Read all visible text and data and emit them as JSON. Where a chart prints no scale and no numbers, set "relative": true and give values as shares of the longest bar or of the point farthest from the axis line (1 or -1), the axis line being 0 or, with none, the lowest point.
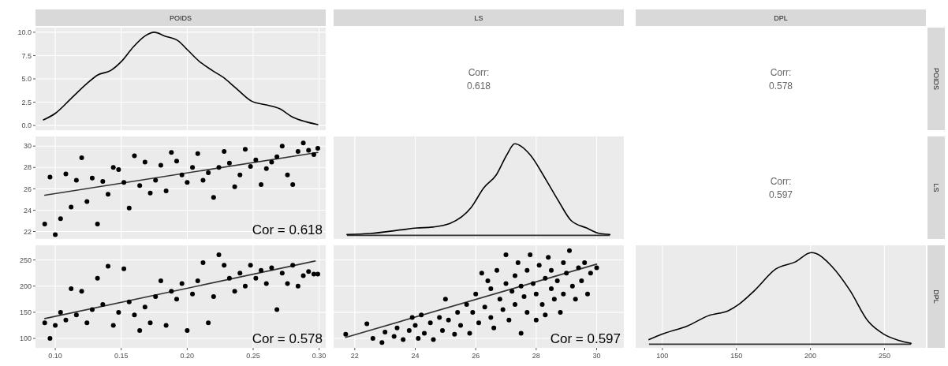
{
  "chart_data": [
    {
      "type": "line",
      "title": "POIDS",
      "xlim": [
        0.085,
        0.305
      ],
      "xticks": [
        0.1,
        0.15,
        0.2,
        0.25,
        0.3
      ],
      "ylim": [
        -0.5,
        10.5
      ],
      "yticks": [
        {
          "value": 0,
          "label": "0.0"
        },
        {
          "value": 2.5,
          "label": "2.5"
        },
        {
          "value": 5,
          "label": "5.0"
        },
        {
          "value": 7.5,
          "label": "7.5"
        },
        {
          "value": 10,
          "label": "10.0"
        }
      ],
      "tick_labels": "y",
      "grid": true,
      "marker": "none",
      "series": [
        {
          "color": "#000000",
          "x": [
            0.091,
            0.1,
            0.112,
            0.124,
            0.132,
            0.142,
            0.151,
            0.159,
            0.168,
            0.175,
            0.183,
            0.193,
            0.201,
            0.209,
            0.219,
            0.227,
            0.237,
            0.249,
            0.26,
            0.27,
            0.28,
            0.29,
            0.299
          ],
          "values": [
            0.6,
            1.3,
            2.9,
            4.5,
            5.4,
            5.9,
            7.0,
            8.4,
            9.6,
            10.0,
            9.6,
            9.1,
            8.0,
            6.9,
            5.9,
            5.2,
            4.0,
            2.6,
            2.2,
            1.8,
            0.9,
            0.4,
            0.1
          ]
        }
      ]
    },
    {
      "type": "other",
      "title": "LS",
      "annotations": [
        "Corr:",
        "0.618"
      ]
    },
    {
      "type": "other",
      "title": "DPL",
      "y2label": "POIDS",
      "annotations": [
        "Corr:",
        "0.578"
      ]
    },
    {
      "type": "scatter",
      "annotations": [
        "Cor = 0.618"
      ],
      "xlim": [
        0.085,
        0.305
      ],
      "xticks": [
        0.1,
        0.15,
        0.2,
        0.25,
        0.3
      ],
      "ylim": [
        21.3,
        30.9
      ],
      "yticks": [
        22,
        24,
        26,
        28,
        30
      ],
      "tick_labels": "y",
      "grid": true,
      "series": [
        {
          "color": "#000000",
          "marker": "circle",
          "x": [
            0.092,
            0.096,
            0.1,
            0.104,
            0.108,
            0.112,
            0.116,
            0.12,
            0.124,
            0.128,
            0.132,
            0.136,
            0.14,
            0.144,
            0.148,
            0.152,
            0.156,
            0.16,
            0.164,
            0.168,
            0.172,
            0.176,
            0.18,
            0.184,
            0.188,
            0.192,
            0.196,
            0.2,
            0.204,
            0.208,
            0.212,
            0.216,
            0.22,
            0.224,
            0.228,
            0.232,
            0.236,
            0.24,
            0.244,
            0.248,
            0.252,
            0.256,
            0.26,
            0.264,
            0.268,
            0.272,
            0.276,
            0.28,
            0.284,
            0.288,
            0.292,
            0.296,
            0.299
          ],
          "values": [
            22.7,
            27.1,
            21.7,
            23.2,
            27.4,
            24.3,
            26.8,
            28.9,
            24.8,
            27.0,
            22.7,
            26.7,
            25.5,
            28.0,
            27.8,
            26.6,
            24.2,
            29.1,
            26.3,
            28.5,
            25.6,
            26.8,
            28.2,
            25.8,
            29.4,
            28.6,
            27.3,
            26.6,
            28.0,
            29.3,
            26.8,
            27.5,
            25.2,
            28.0,
            29.5,
            28.4,
            26.2,
            27.3,
            29.7,
            28.1,
            28.7,
            26.4,
            27.9,
            28.5,
            29.0,
            30.0,
            27.3,
            26.4,
            29.5,
            30.3,
            29.6,
            29.2,
            29.8
          ]
        },
        {
          "type": "line",
          "marker": "none",
          "color": "#333333",
          "x": [
            0.092,
            0.299
          ],
          "values": [
            25.4,
            29.4
          ]
        }
      ]
    },
    {
      "type": "line",
      "relative": true,
      "xlim": [
        21.3,
        30.9
      ],
      "xticks": [
        22,
        24,
        26,
        28,
        30
      ],
      "tick_labels": false,
      "grid": true,
      "marker": "none",
      "series": [
        {
          "color": "#000000",
          "x": [
            21.74,
            22.51,
            23.53,
            24.05,
            24.56,
            25.15,
            25.84,
            26.27,
            26.68,
            27.03,
            27.29,
            27.8,
            28.32,
            28.73,
            29.16,
            29.67,
            30.1,
            30.44
          ],
          "values": [
            0.01,
            0.02,
            0.06,
            0.08,
            0.09,
            0.13,
            0.3,
            0.52,
            0.66,
            0.88,
            1.0,
            0.88,
            0.61,
            0.38,
            0.16,
            0.08,
            0.02,
            0.01
          ]
        }
      ]
    },
    {
      "type": "other",
      "y2label": "LS",
      "annotations": [
        "Corr:",
        "0.597"
      ]
    },
    {
      "type": "scatter",
      "annotations": [
        "Cor = 0.578"
      ],
      "xlim": [
        0.085,
        0.305
      ],
      "xticks": [
        {
          "value": 0.1,
          "label": "0.10"
        },
        {
          "value": 0.15,
          "label": "0.15"
        },
        {
          "value": 0.2,
          "label": "0.20"
        },
        {
          "value": 0.25,
          "label": "0.25"
        },
        {
          "value": 0.3,
          "label": "0.30"
        }
      ],
      "ylim": [
        82,
        278
      ],
      "yticks": [
        100,
        150,
        200,
        250
      ],
      "grid": true,
      "series": [
        {
          "color": "#000000",
          "marker": "circle",
          "x": [
            0.092,
            0.096,
            0.1,
            0.104,
            0.108,
            0.112,
            0.116,
            0.12,
            0.124,
            0.128,
            0.132,
            0.136,
            0.14,
            0.144,
            0.148,
            0.152,
            0.156,
            0.16,
            0.164,
            0.168,
            0.172,
            0.176,
            0.18,
            0.184,
            0.188,
            0.192,
            0.196,
            0.2,
            0.204,
            0.208,
            0.212,
            0.216,
            0.22,
            0.224,
            0.228,
            0.232,
            0.236,
            0.24,
            0.244,
            0.248,
            0.252,
            0.256,
            0.26,
            0.264,
            0.268,
            0.272,
            0.276,
            0.28,
            0.284,
            0.288,
            0.292,
            0.296,
            0.299
          ],
          "values": [
            130,
            100,
            125,
            150,
            135,
            195,
            145,
            190,
            130,
            155,
            215,
            165,
            238,
            125,
            150,
            233,
            170,
            145,
            115,
            160,
            130,
            180,
            210,
            125,
            190,
            175,
            205,
            115,
            185,
            210,
            245,
            130,
            180,
            260,
            240,
            215,
            190,
            225,
            200,
            240,
            215,
            230,
            205,
            235,
            155,
            225,
            205,
            240,
            200,
            220,
            228,
            223,
            223
          ]
        },
        {
          "type": "line",
          "marker": "none",
          "color": "#333333",
          "x": [
            0.092,
            0.297
          ],
          "values": [
            138,
            248
          ]
        }
      ]
    },
    {
      "type": "scatter",
      "annotations": [
        "Cor = 0.597"
      ],
      "xlim": [
        21.3,
        30.9
      ],
      "xticks": [
        22,
        24,
        26,
        28,
        30
      ],
      "ylim": [
        82,
        278
      ],
      "yticks": [
        100,
        150,
        200,
        250
      ],
      "tick_labels": "x",
      "grid": true,
      "series": [
        {
          "color": "#000000",
          "marker": "circle",
          "x": [
            21.7,
            22.4,
            22.6,
            22.9,
            23.0,
            23.3,
            23.4,
            23.6,
            23.8,
            23.9,
            24.0,
            24.1,
            24.2,
            24.3,
            24.5,
            24.6,
            24.8,
            24.9,
            25.0,
            25.1,
            25.3,
            25.4,
            25.5,
            25.7,
            25.8,
            25.9,
            26.0,
            26.1,
            26.2,
            26.3,
            26.4,
            26.5,
            26.5,
            26.6,
            26.7,
            26.8,
            26.9,
            27.0,
            27.0,
            27.1,
            27.2,
            27.3,
            27.3,
            27.4,
            27.5,
            27.5,
            27.6,
            27.7,
            27.7,
            27.8,
            27.9,
            28.0,
            28.0,
            28.1,
            28.2,
            28.3,
            28.3,
            28.4,
            28.5,
            28.5,
            28.6,
            28.7,
            28.8,
            28.9,
            28.9,
            29.0,
            29.1,
            29.2,
            29.3,
            29.4,
            29.5,
            29.6,
            29.7,
            29.8,
            30.0
          ],
          "values": [
            108,
            128,
            100,
            92,
            112,
            104,
            120,
            98,
            115,
            140,
            125,
            100,
            145,
            110,
            130,
            98,
            140,
            115,
            175,
            135,
            108,
            150,
            125,
            165,
            110,
            150,
            185,
            130,
            225,
            160,
            210,
            140,
            195,
            120,
            230,
            175,
            155,
            205,
            260,
            135,
            190,
            220,
            165,
            245,
            110,
            200,
            180,
            150,
            230,
            260,
            205,
            135,
            185,
            240,
            165,
            215,
            145,
            255,
            195,
            230,
            175,
            210,
            150,
            245,
            185,
            225,
            268,
            200,
            175,
            235,
            210,
            245,
            185,
            225,
            235
          ]
        },
        {
          "type": "line",
          "marker": "none",
          "color": "#333333",
          "x": [
            21.7,
            30.0
          ],
          "values": [
            102,
            242
          ]
        }
      ]
    },
    {
      "type": "line",
      "relative": true,
      "y2label": "DPL",
      "xlim": [
        82,
        278
      ],
      "xticks": [
        100,
        150,
        200,
        250
      ],
      "tick_labels": "x",
      "grid": true,
      "marker": "none",
      "series": [
        {
          "color": "#000000",
          "x": [
            91,
            100,
            117,
            131,
            145,
            152,
            162.5,
            176.5,
            190,
            200.5,
            204,
            214.5,
            226.6,
            239,
            249.5,
            260,
            268
          ],
          "values": [
            0.05,
            0.11,
            0.2,
            0.31,
            0.37,
            0.44,
            0.59,
            0.82,
            0.9,
            1.0,
            0.99,
            0.85,
            0.59,
            0.25,
            0.11,
            0.04,
            0.01
          ]
        }
      ]
    }
  ]
}
